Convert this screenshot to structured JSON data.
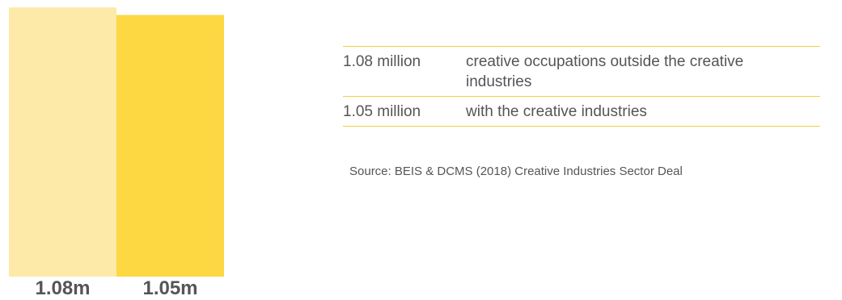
{
  "chart_data": {
    "type": "bar",
    "categories": [
      "1.08m",
      "1.05m"
    ],
    "values": [
      1.08,
      1.05
    ],
    "colors": [
      "#fde9a8",
      "#fdd843"
    ],
    "ylim": [
      0,
      1.11
    ],
    "grid": false,
    "title": "",
    "xlabel": "",
    "ylabel": ""
  },
  "table": {
    "rows": [
      {
        "value": "1.08 million",
        "description": "creative occupations outside the creative industries"
      },
      {
        "value": "1.05 million",
        "description": "with the creative industries"
      }
    ],
    "border_color": "#f1cf44"
  },
  "source": "Source: BEIS & DCMS (2018) Creative Industries Sector Deal"
}
